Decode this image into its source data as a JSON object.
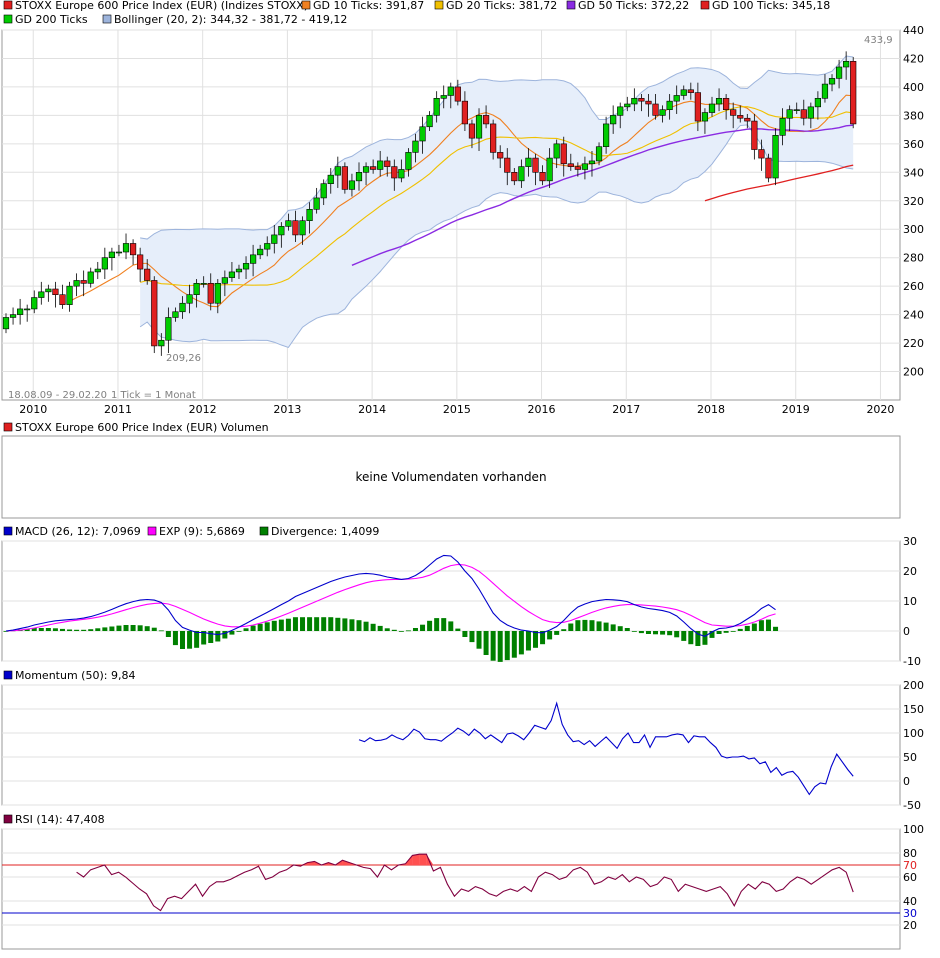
{
  "colors": {
    "up": "#00cc00",
    "down": "#e02020",
    "gd10": "#f08020",
    "gd20": "#f0c000",
    "gd50": "#8a2be2",
    "gd100": "#e02020",
    "gd200": "#00cc00",
    "bollinger_fill": "#e6eefa",
    "bollinger_line": "#9db4dc",
    "macd": "#0000cc",
    "exp": "#ff00ff",
    "divergence": "#008000",
    "momentum": "#0000cc",
    "rsi": "#800040",
    "rsi_upper": "#e02020",
    "rsi_lower": "#0000cc",
    "grid": "#e0e0e0"
  },
  "price_panel": {
    "legend": [
      {
        "swatch": "#e02020",
        "label": "STOXX Europe 600 Price Index (EUR) (Indizes STOXX)"
      },
      {
        "swatch": "#f08020",
        "label": "GD 10 Ticks: 391,87"
      },
      {
        "swatch": "#f0c000",
        "label": "GD 20 Ticks: 381,72"
      },
      {
        "swatch": "#8a2be2",
        "label": "GD 50 Ticks: 372,22"
      },
      {
        "swatch": "#e02020",
        "label": "GD 100 Ticks: 345,18"
      },
      {
        "swatch": "#00cc00",
        "label": "GD 200 Ticks"
      },
      {
        "swatch": "#9db4dc",
        "label": "Bollinger (20, 2): 344,32 - 381,72 - 419,12"
      }
    ],
    "high_label": "433,9",
    "low_label": "209,26",
    "range_note": "18.08.09 - 29.02.20",
    "tick_note": "1 Tick = 1 Monat",
    "years": [
      "2010",
      "2011",
      "2012",
      "2013",
      "2014",
      "2015",
      "2016",
      "2017",
      "2018",
      "2019",
      "2020"
    ]
  },
  "volume_panel": {
    "legend": [
      {
        "swatch": "#e02020",
        "label": "STOXX Europe 600 Price Index (EUR) Volumen"
      }
    ],
    "message": "keine Volumendaten vorhanden"
  },
  "macd_panel": {
    "legend": [
      {
        "swatch": "#0000cc",
        "label": "MACD (26, 12): 7,0969"
      },
      {
        "swatch": "#ff00ff",
        "label": "EXP (9): 5,6869"
      },
      {
        "swatch": "#008000",
        "label": "Divergence: 1,4099"
      }
    ]
  },
  "momentum_panel": {
    "legend": [
      {
        "swatch": "#0000cc",
        "label": "Momentum (50): 9,84"
      }
    ]
  },
  "rsi_panel": {
    "legend": [
      {
        "swatch": "#800040",
        "label": "RSI (14): 47,408"
      }
    ],
    "upper": 70,
    "lower": 30
  },
  "chart_data": [
    {
      "type": "candlestick",
      "x_start": "2009-09",
      "x_end": "2020-02",
      "frequency": "monthly",
      "ylim": [
        180,
        440
      ],
      "yticks": [
        200,
        220,
        240,
        260,
        280,
        300,
        320,
        340,
        360,
        380,
        400,
        420,
        440
      ],
      "close": [
        238,
        240,
        244,
        244,
        252,
        256,
        258,
        254,
        247,
        260,
        264,
        262,
        270,
        272,
        280,
        284,
        284,
        290,
        282,
        272,
        264,
        218,
        222,
        238,
        242,
        248,
        254,
        262,
        262,
        248,
        262,
        266,
        270,
        272,
        276,
        282,
        286,
        290,
        296,
        302,
        306,
        296,
        306,
        314,
        322,
        332,
        338,
        344,
        328,
        334,
        340,
        344,
        342,
        348,
        344,
        336,
        342,
        354,
        362,
        372,
        380,
        392,
        394,
        400,
        390,
        374,
        364,
        380,
        374,
        354,
        350,
        340,
        334,
        344,
        350,
        340,
        334,
        350,
        360,
        346,
        344,
        342,
        346,
        348,
        358,
        374,
        380,
        386,
        388,
        392,
        390,
        388,
        380,
        384,
        390,
        394,
        398,
        396,
        376,
        382,
        388,
        392,
        384,
        380,
        378,
        376,
        356,
        350,
        336,
        366,
        378,
        384,
        384,
        378,
        386,
        392,
        402,
        406,
        414,
        418,
        374
      ],
      "series": [
        {
          "name": "GD 10 Ticks",
          "last": 391.87
        },
        {
          "name": "GD 20 Ticks",
          "last": 381.72
        },
        {
          "name": "GD 50 Ticks",
          "last": 372.22
        },
        {
          "name": "GD 100 Ticks",
          "last": 345.18
        },
        {
          "name": "Bollinger (20, 2)",
          "lower": 344.32,
          "mid": 381.72,
          "upper": 419.12
        }
      ]
    },
    {
      "type": "line",
      "name": "MACD",
      "ylim": [
        -10,
        30
      ],
      "yticks": [
        -10,
        0,
        10,
        20,
        30
      ],
      "macd": [
        0,
        0.3,
        0.8,
        1.3,
        2,
        2.5,
        3,
        3.4,
        3.6,
        3.8,
        4,
        4.3,
        4.8,
        5.5,
        6.3,
        7.2,
        8.2,
        9.1,
        9.8,
        10.3,
        10.5,
        10.3,
        9.5,
        7,
        3.5,
        1.2,
        0.3,
        -0.5,
        -0.5,
        -0.9,
        -1.2,
        -0.8,
        0.2,
        1.3,
        2.5,
        3.8,
        5,
        6.2,
        7.5,
        8.8,
        10,
        11.5,
        12.5,
        13.5,
        14.5,
        15.5,
        16.5,
        17.3,
        18,
        18.5,
        19,
        19.2,
        19,
        18.6,
        18,
        17.6,
        17.2,
        17.5,
        18.5,
        20,
        22,
        24,
        25.2,
        25,
        23,
        20,
        17.5,
        14,
        10,
        6,
        3.5,
        2,
        1,
        0.3,
        0,
        -0.5,
        -0.6,
        0.3,
        1.5,
        3.5,
        6,
        8,
        9,
        9.8,
        10.2,
        10.5,
        10.4,
        10.2,
        9.8,
        8.8,
        8,
        7.5,
        7.2,
        6.8,
        6.2,
        5,
        3,
        0.8,
        -1,
        -1.8,
        -0.3,
        0.8,
        1,
        1.5,
        2.5,
        4,
        5.5,
        7.5,
        8.8,
        7.1
      ],
      "exp": [
        0,
        0.1,
        0.3,
        0.6,
        1,
        1.5,
        2,
        2.5,
        2.9,
        3.3,
        3.6,
        3.9,
        4.2,
        4.6,
        5.1,
        5.7,
        6.4,
        7.1,
        7.8,
        8.4,
        8.9,
        9.2,
        9.3,
        9,
        8.2,
        7.2,
        6.2,
        5.1,
        4,
        3.1,
        2.3,
        1.7,
        1.4,
        1.4,
        1.6,
        2,
        2.6,
        3.3,
        4.1,
        5,
        5.9,
        6.9,
        7.9,
        8.9,
        9.9,
        10.9,
        11.9,
        12.9,
        13.8,
        14.6,
        15.4,
        16.1,
        16.6,
        16.9,
        17.1,
        17.2,
        17.2,
        17.3,
        17.5,
        17.9,
        18.6,
        19.7,
        20.9,
        21.8,
        22.2,
        22,
        21.2,
        19.9,
        18,
        15.9,
        13.8,
        11.7,
        9.9,
        8.1,
        6.5,
        5.1,
        3.8,
        3.1,
        2.8,
        2.9,
        3.5,
        4.4,
        5.3,
        6.2,
        7,
        7.7,
        8.2,
        8.6,
        8.8,
        8.8,
        8.7,
        8.5,
        8.3,
        8,
        7.6,
        7.1,
        6.3,
        5.2,
        4,
        2.8,
        2,
        1.8,
        1.6,
        1.6,
        1.8,
        2.3,
        3,
        3.9,
        5,
        5.7
      ]
    },
    {
      "type": "line",
      "name": "Momentum (50)",
      "ylim": [
        -50,
        200
      ],
      "yticks": [
        -50,
        0,
        50,
        100,
        150,
        200
      ],
      "x_offset": 50,
      "values": [
        86,
        82,
        90,
        84,
        85,
        88,
        96,
        90,
        86,
        95,
        108,
        102,
        88,
        86,
        86,
        83,
        92,
        100,
        110,
        104,
        95,
        108,
        100,
        88,
        96,
        88,
        80,
        98,
        100,
        94,
        86,
        100,
        116,
        112,
        108,
        126,
        162,
        118,
        96,
        82,
        84,
        76,
        84,
        72,
        82,
        92,
        80,
        68,
        88,
        100,
        80,
        80,
        96,
        70,
        92,
        92,
        92,
        96,
        98,
        96,
        80,
        94,
        92,
        92,
        80,
        70,
        52,
        48,
        50,
        50,
        52,
        46,
        48,
        36,
        40,
        18,
        28,
        12,
        18,
        20,
        8,
        -10,
        -28,
        -12,
        -4,
        -6,
        30,
        56,
        40,
        24,
        9.84
      ]
    },
    {
      "type": "line",
      "name": "RSI (14)",
      "ylim": [
        0,
        100
      ],
      "yticks": [
        20,
        40,
        60,
        80,
        100
      ],
      "x_offset": 10,
      "values": [
        64,
        60,
        66,
        68,
        70,
        62,
        64,
        60,
        55,
        50,
        46,
        36,
        32,
        42,
        44,
        42,
        48,
        54,
        44,
        52,
        56,
        56,
        58,
        61,
        64,
        66,
        69,
        58,
        60,
        64,
        66,
        70,
        69,
        72,
        73,
        70,
        72,
        70,
        74,
        72,
        70,
        68,
        67,
        60,
        70,
        66,
        70,
        71,
        78,
        79,
        79,
        65,
        68,
        54,
        44,
        50,
        48,
        52,
        50,
        46,
        44,
        48,
        50,
        48,
        52,
        48,
        60,
        64,
        62,
        58,
        60,
        66,
        68,
        64,
        54,
        56,
        60,
        58,
        62,
        56,
        60,
        58,
        52,
        54,
        60,
        58,
        48,
        54,
        52,
        50,
        48,
        50,
        52,
        46,
        36,
        48,
        54,
        50,
        56,
        54,
        48,
        50,
        56,
        60,
        58,
        54,
        58,
        62,
        66,
        68,
        64,
        47.408
      ]
    }
  ]
}
